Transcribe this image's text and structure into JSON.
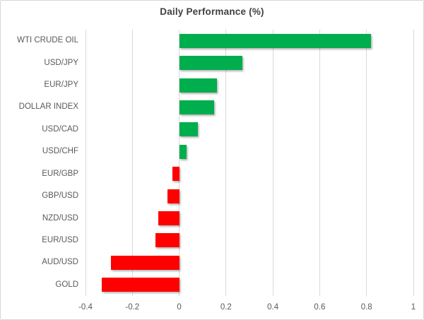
{
  "chart_data": {
    "type": "bar",
    "orientation": "horizontal",
    "title": "Daily Performance (%)",
    "categories": [
      "WTI CRUDE OIL",
      "USD/JPY",
      "EUR/JPY",
      "DOLLAR INDEX",
      "USD/CAD",
      "USD/CHF",
      "EUR/GBP",
      "GBP/USD",
      "NZD/USD",
      "EUR/USD",
      "AUD/USD",
      "GOLD"
    ],
    "values": [
      0.82,
      0.27,
      0.16,
      0.15,
      0.08,
      0.03,
      -0.03,
      -0.05,
      -0.09,
      -0.1,
      -0.29,
      -0.33
    ],
    "xlim": [
      -0.4,
      1
    ],
    "xticks": [
      -0.4,
      -0.2,
      0,
      0.2,
      0.4,
      0.6,
      0.8,
      1
    ],
    "xtick_labels": [
      "-0.4",
      "-0.2",
      "0",
      "0.2",
      "0.4",
      "0.6",
      "0.8",
      "1"
    ],
    "grid": true,
    "legend": false,
    "colors": {
      "positive": "#00AE4D",
      "negative": "#FF0000",
      "gridline": "#D9D9D9",
      "text": "#595959",
      "title": "#404040"
    }
  }
}
